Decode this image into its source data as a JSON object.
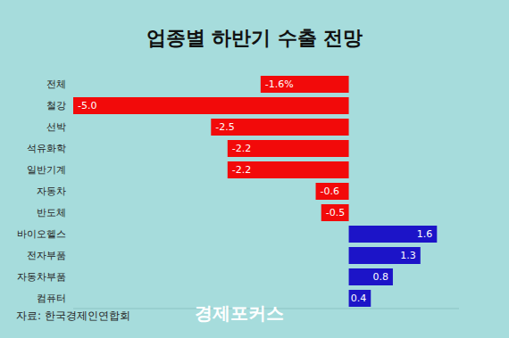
{
  "chart_data": {
    "type": "bar",
    "title": "업종별 하반기 수출 전망",
    "orientation": "horizontal",
    "categories": [
      "전체",
      "철강",
      "선박",
      "석유화학",
      "일반기계",
      "자동차",
      "반도체",
      "바이오헬스",
      "전자부품",
      "자동차부품",
      "컴퓨터"
    ],
    "values": [
      -1.6,
      -5.0,
      -2.5,
      -2.2,
      -2.2,
      -0.6,
      -0.5,
      1.6,
      1.3,
      0.8,
      0.4
    ],
    "value_labels": [
      "-1.6%",
      "-5.0",
      "-2.5",
      "-2.2",
      "-2.2",
      "-0.6",
      "-0.5",
      "1.6",
      "1.3",
      "0.8",
      "0.4"
    ],
    "colors": [
      "#f20a0a",
      "#f20a0a",
      "#f20a0a",
      "#f20a0a",
      "#f20a0a",
      "#f20a0a",
      "#f20a0a",
      "#1c14c8",
      "#1c14c8",
      "#1c14c8",
      "#1c14c8"
    ],
    "xlim": [
      -5,
      2
    ],
    "xticks": [],
    "tick_labels": "y",
    "data_labels": true,
    "grid": false,
    "annotations": [
      "자료: 한국경제인연합회",
      "경제포커스"
    ]
  }
}
